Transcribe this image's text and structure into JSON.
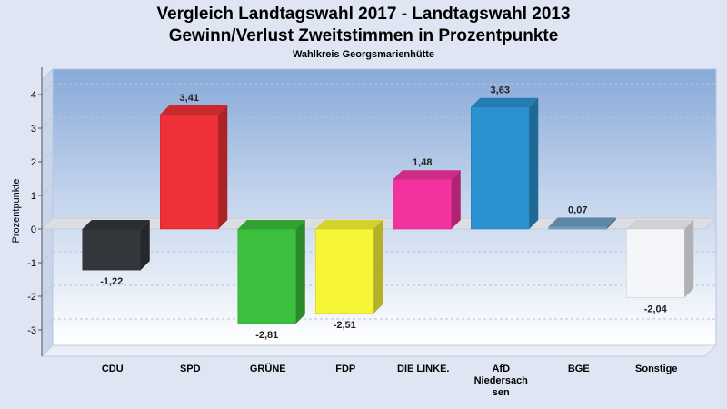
{
  "title_line1": "Vergleich Landtagswahl 2017 - Landtagswahl 2013",
  "title_line2": "Gewinn/Verlust Zweitstimmen in Prozentpunkte",
  "subtitle": "Wahlkreis Georgsmarienhütte",
  "chart_data": {
    "type": "bar",
    "ylabel": "Prozentpunkte",
    "xlabel": "",
    "ylim": [
      -3.7,
      4.6
    ],
    "yticks": [
      4,
      3,
      2,
      1,
      0,
      -1,
      -2,
      -3
    ],
    "grid": true,
    "categories": [
      "CDU",
      "SPD",
      "GRÜNE",
      "FDP",
      "DIE LINKE.",
      "AfD Niedersachsen",
      "BGE",
      "Sonstige"
    ],
    "category_lines": [
      [
        "CDU"
      ],
      [
        "SPD"
      ],
      [
        "GRÜNE"
      ],
      [
        "FDP"
      ],
      [
        "DIE LINKE."
      ],
      [
        "AfD",
        "Niedersach",
        "sen"
      ],
      [
        "BGE"
      ],
      [
        "Sonstige"
      ]
    ],
    "values": [
      -1.22,
      3.41,
      -2.81,
      -2.51,
      1.48,
      3.63,
      0.07,
      -2.04
    ],
    "value_labels": [
      "-1,22",
      "3,41",
      "-2,81",
      "-2,51",
      "1,48",
      "3,63",
      "0,07",
      "-2,04"
    ],
    "colors": [
      "#33363b",
      "#ee3039",
      "#3bbf3d",
      "#f7f636",
      "#f2329e",
      "#2b92d0",
      "#6e9fc4",
      "#f4f6fa"
    ]
  }
}
